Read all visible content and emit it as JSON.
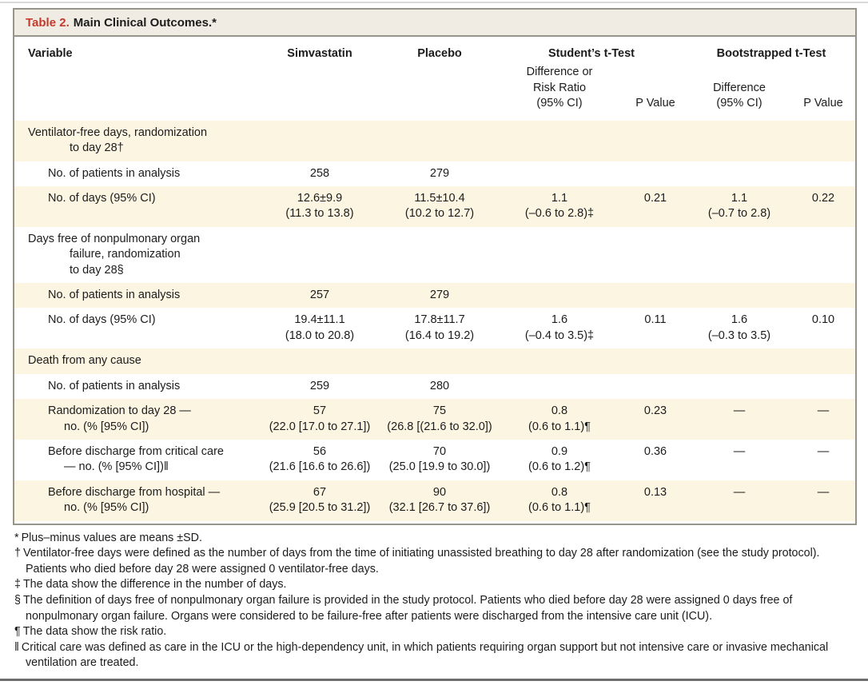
{
  "title": {
    "label": "Table 2.",
    "text": "Main Clinical Outcomes.*"
  },
  "header": {
    "variable": "Variable",
    "simvastatin": "Simvastatin",
    "placebo": "Placebo",
    "students_t_test": "Student’s t-Test",
    "bootstrapped_t_test": "Bootstrapped t-Test",
    "students_diff": "Difference or\nRisk Ratio\n(95% CI)",
    "students_p": "P Value",
    "boot_diff": "Difference\n(95% CI)",
    "boot_p": "P Value"
  },
  "rows": [
    {
      "type": "section",
      "label": "Ventilator-free days, randomization\nto day 28†",
      "cells": [
        "",
        "",
        "",
        "",
        "",
        ""
      ]
    },
    {
      "type": "sub",
      "label": "No. of patients in analysis",
      "cells": [
        "258",
        "279",
        "",
        "",
        "",
        ""
      ]
    },
    {
      "type": "sub",
      "label": "No. of days (95% CI)",
      "cells": [
        "12.6±9.9\n(11.3 to 13.8)",
        "11.5±10.4\n(10.2 to 12.7)",
        "1.1\n(–0.6 to 2.8)‡",
        "0.21",
        "1.1\n(–0.7 to 2.8)",
        "0.22"
      ]
    },
    {
      "type": "section",
      "label": "Days free of nonpulmonary organ\nfailure, randomization\nto day 28§",
      "cells": [
        "",
        "",
        "",
        "",
        "",
        ""
      ]
    },
    {
      "type": "sub",
      "label": "No. of patients in analysis",
      "cells": [
        "257",
        "279",
        "",
        "",
        "",
        ""
      ]
    },
    {
      "type": "sub",
      "label": "No. of days (95% CI)",
      "cells": [
        "19.4±11.1\n(18.0 to 20.8)",
        "17.8±11.7\n(16.4 to 19.2)",
        "1.6\n(–0.4 to 3.5)‡",
        "0.11",
        "1.6\n(–0.3 to 3.5)",
        "0.10"
      ]
    },
    {
      "type": "section",
      "label": "Death from any cause",
      "cells": [
        "",
        "",
        "",
        "",
        "",
        ""
      ]
    },
    {
      "type": "sub",
      "label": "No. of patients in analysis",
      "cells": [
        "259",
        "280",
        "",
        "",
        "",
        ""
      ]
    },
    {
      "type": "sub",
      "label": "Randomization to day 28 —\nno. (% [95% CI])",
      "cells": [
        "57\n(22.0 [17.0 to 27.1])",
        "75\n(26.8 [(21.6 to 32.0])",
        "0.8\n(0.6 to 1.1)¶",
        "0.23",
        "—",
        "—"
      ]
    },
    {
      "type": "sub",
      "label": "Before discharge from critical care\n— no. (% [95% CI])‖",
      "cells": [
        "56\n(21.6 [16.6 to 26.6])",
        "70\n(25.0 [19.9 to 30.0])",
        "0.9\n(0.6 to 1.2)¶",
        "0.36",
        "—",
        "—"
      ]
    },
    {
      "type": "sub",
      "label": "Before discharge from hospital —\nno. (% [95% CI])",
      "cells": [
        "67\n(25.9 [20.5 to 31.2])",
        "90\n(32.1 [26.7 to 37.6])",
        "0.8\n(0.6 to 1.1)¶",
        "0.13",
        "—",
        "—"
      ]
    }
  ],
  "footnotes": [
    {
      "marker": "*",
      "text": "Plus–minus values are means ±SD."
    },
    {
      "marker": "†",
      "text": "Ventilator-free days were defined as the number of days from the time of initiating unassisted breathing to day 28 after randomization (see the study protocol). Patients who died before day 28 were assigned 0 ventilator-free days."
    },
    {
      "marker": "‡",
      "text": "The data show the difference in the number of days."
    },
    {
      "marker": "§",
      "text": "The definition of days free of nonpulmonary organ failure is provided in the study protocol. Patients who died before day 28 were assigned 0 days free of nonpulmonary organ failure. Organs were considered to be failure-free after patients were discharged from the intensive care unit (ICU)."
    },
    {
      "marker": "¶",
      "text": "The data show the risk ratio."
    },
    {
      "marker": "‖",
      "text": "Critical care was defined as care in the ICU or the high-dependency unit, in which patients requiring organ support but not intensive care or invasive mechanical ventilation are treated."
    }
  ],
  "colors": {
    "accent_red": "#c53a2c",
    "row_shade": "#fbf5e2",
    "frame": "#97948e"
  }
}
